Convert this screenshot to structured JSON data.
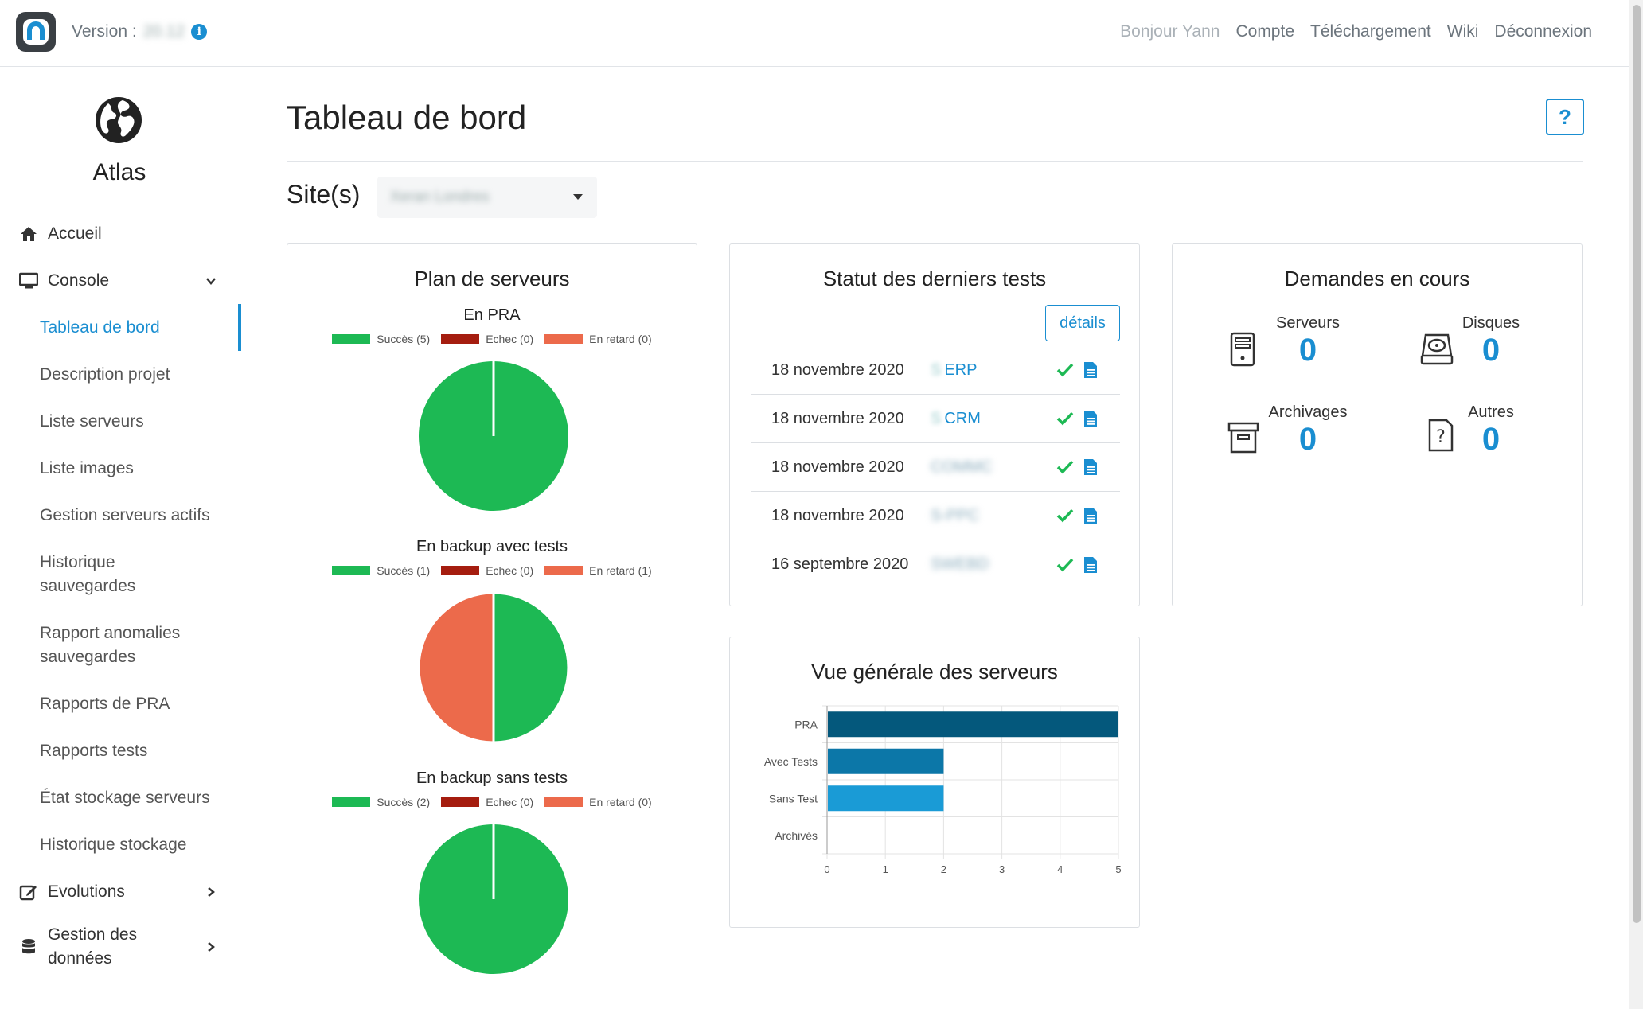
{
  "topbar": {
    "version_label": "Version :",
    "version_value": "20.12",
    "nav": [
      "Bonjour Yann",
      "Compte",
      "Téléchargement",
      "Wiki",
      "Déconnexion"
    ]
  },
  "sidebar": {
    "brand": "Atlas",
    "accueil": "Accueil",
    "console": "Console",
    "console_items": [
      "Tableau de bord",
      "Description projet",
      "Liste serveurs",
      "Liste images",
      "Gestion serveurs actifs",
      "Historique sauvegardes",
      "Rapport anomalies sauvegardes",
      "Rapports de PRA",
      "Rapports tests",
      "État stockage serveurs",
      "Historique stockage"
    ],
    "evolutions": "Evolutions",
    "gestion": "Gestion des données"
  },
  "main": {
    "title": "Tableau de bord",
    "help": "?",
    "site_label": "Site(s)",
    "site_value": "Xeran Londres"
  },
  "plan": {
    "title": "Plan de serveurs",
    "charts": [
      {
        "title": "En PRA",
        "legend": [
          "Succès (5)",
          "Echec (0)",
          "En retard (0)"
        ]
      },
      {
        "title": "En backup avec tests",
        "legend": [
          "Succès (1)",
          "Echec (0)",
          "En retard (1)"
        ]
      },
      {
        "title": "En backup sans tests",
        "legend": [
          "Succès (2)",
          "Echec (0)",
          "En retard (0)"
        ]
      }
    ]
  },
  "tests": {
    "title": "Statut des derniers tests",
    "details": "détails",
    "rows": [
      {
        "date": "18 novembre 2020",
        "prefix": "S",
        "app": "ERP"
      },
      {
        "date": "18 novembre 2020",
        "prefix": "S",
        "app": "CRM"
      },
      {
        "date": "18 novembre 2020",
        "prefix": "",
        "app": "COMMC"
      },
      {
        "date": "18 novembre 2020",
        "prefix": "",
        "app": "S-PPC"
      },
      {
        "date": "16 septembre 2020",
        "prefix": "",
        "app": "SWEBD"
      }
    ]
  },
  "requests": {
    "title": "Demandes en cours",
    "items": [
      {
        "label": "Serveurs",
        "value": "0"
      },
      {
        "label": "Disques",
        "value": "0"
      },
      {
        "label": "Archivages",
        "value": "0"
      },
      {
        "label": "Autres",
        "value": "0"
      }
    ]
  },
  "overview": {
    "title": "Vue générale des serveurs"
  },
  "colors": {
    "success": "#1db954",
    "fail": "#a51d0f",
    "late": "#ec6a4b",
    "accent": "#1a8ed1"
  },
  "chart_data": [
    {
      "type": "pie",
      "title": "En PRA",
      "categories": [
        "Succès",
        "Echec",
        "En retard"
      ],
      "values": [
        5,
        0,
        0
      ]
    },
    {
      "type": "pie",
      "title": "En backup avec tests",
      "categories": [
        "Succès",
        "Echec",
        "En retard"
      ],
      "values": [
        1,
        0,
        1
      ]
    },
    {
      "type": "pie",
      "title": "En backup sans tests",
      "categories": [
        "Succès",
        "Echec",
        "En retard"
      ],
      "values": [
        2,
        0,
        0
      ]
    },
    {
      "type": "bar",
      "title": "Vue générale des serveurs",
      "orientation": "horizontal",
      "categories": [
        "PRA",
        "Avec Tests",
        "Sans Test",
        "Archivés"
      ],
      "values": [
        5,
        2,
        2,
        0
      ],
      "xlim": [
        0,
        5
      ],
      "xticks": [
        0,
        1,
        2,
        3,
        4,
        5
      ],
      "bar_colors": [
        "#04587c",
        "#0c77a8",
        "#1a9bd6",
        "#1a9bd6"
      ],
      "grid": true
    }
  ]
}
